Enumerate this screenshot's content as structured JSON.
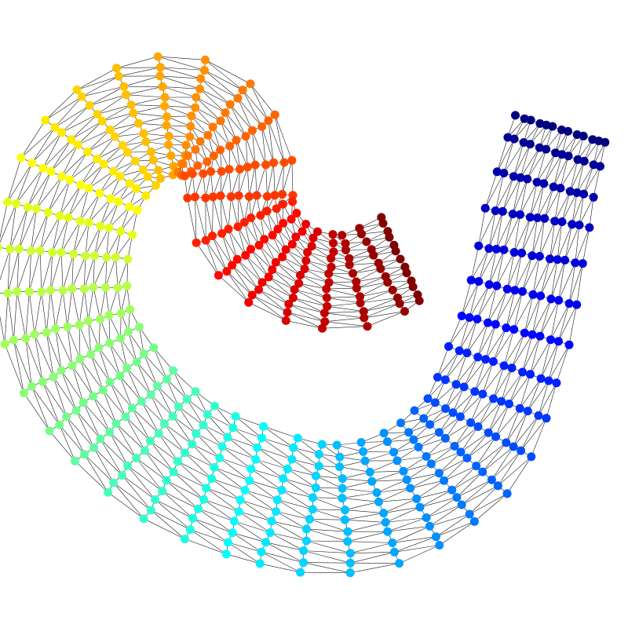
{
  "figure": {
    "kind": "mesh-graph",
    "description_visible_text": "",
    "node_colormap": "jet",
    "edge_color": "#1a1a1a",
    "background": "#ffffff",
    "colormap_stops": [
      "#00007f",
      "#0000ff",
      "#007fff",
      "#00ffff",
      "#7fff7f",
      "#ffff00",
      "#ff7f00",
      "#ff0000",
      "#7f0000"
    ]
  }
}
